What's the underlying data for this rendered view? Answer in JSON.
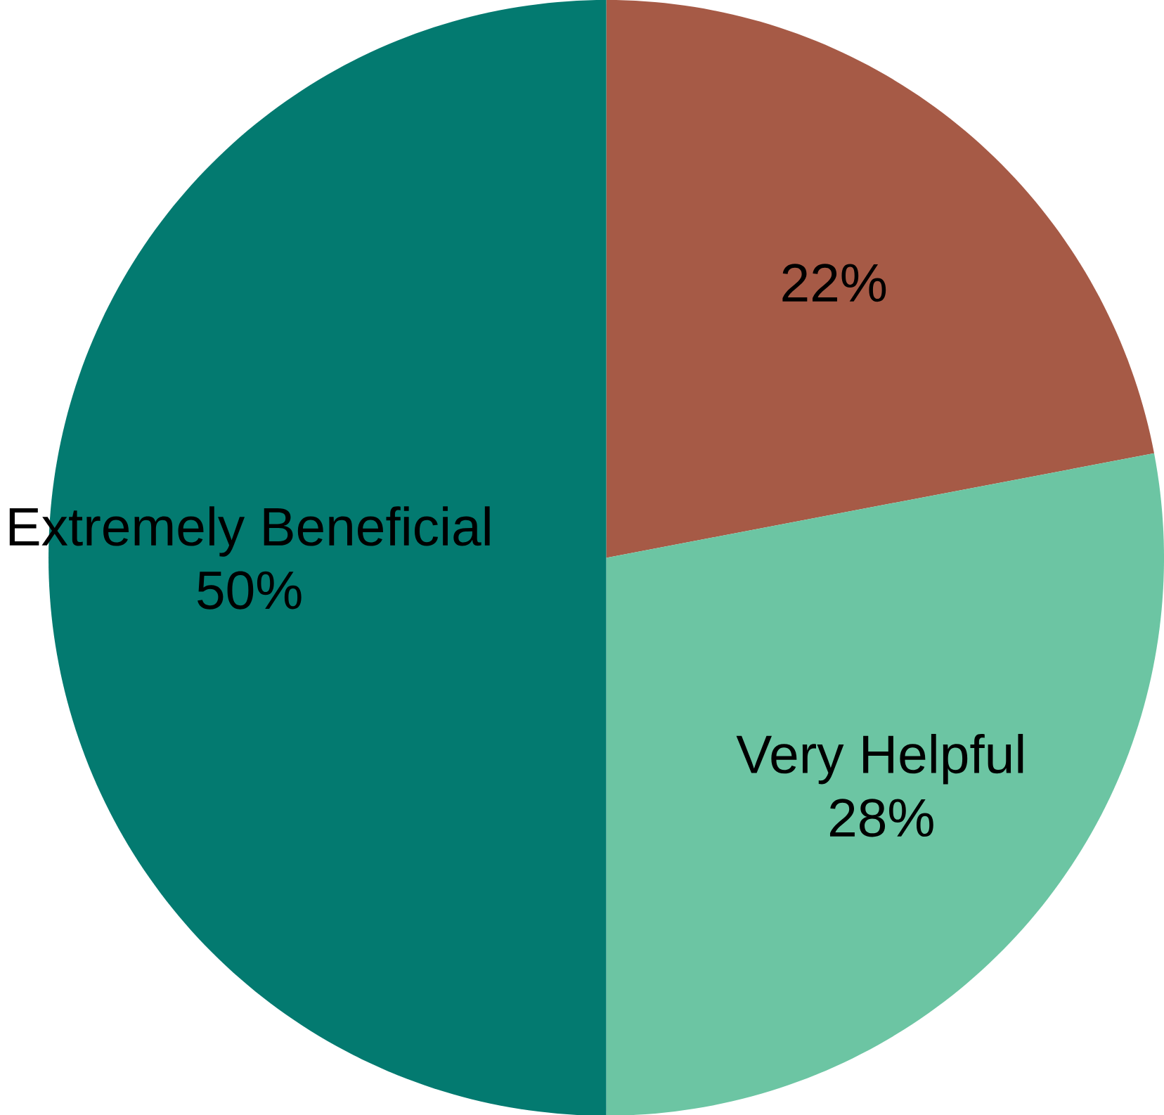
{
  "chart_data": {
    "type": "pie",
    "categories": [
      null,
      "Very Helpful",
      "Extremely Beneficial"
    ],
    "values": [
      22,
      28,
      50
    ],
    "value_labels": [
      "22%",
      "28%",
      "50%"
    ],
    "colors": [
      "#a65a46",
      "#6cc5a3",
      "#037a70"
    ]
  }
}
